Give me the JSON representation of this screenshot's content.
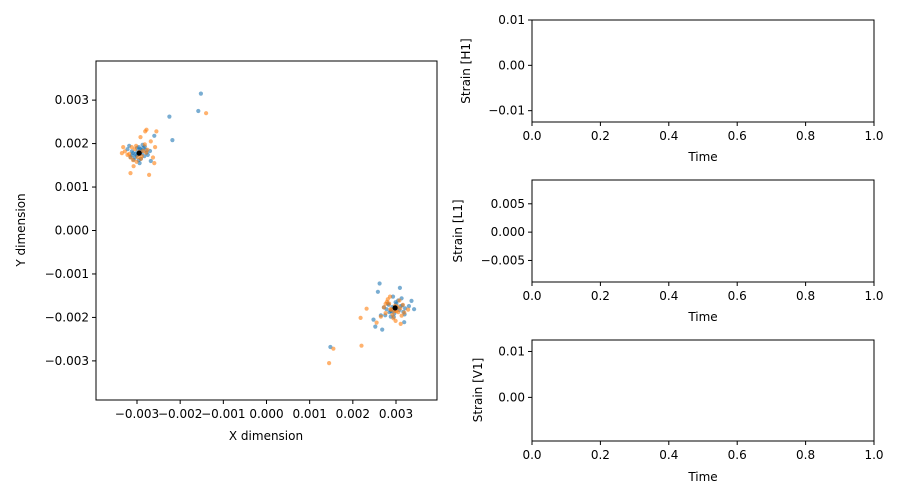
{
  "chart_data": [
    {
      "type": "scatter",
      "xlabel": "X dimension",
      "ylabel": "Y dimension",
      "xlim": [
        -0.00395,
        0.00395
      ],
      "ylim": [
        -0.0039,
        0.0039
      ],
      "x_ticks": [
        -0.003,
        -0.002,
        -0.001,
        0.0,
        0.001,
        0.002,
        0.003
      ],
      "x_tick_labels": [
        "−0.003",
        "−0.002",
        "−0.001",
        "0.000",
        "0.001",
        "0.002",
        "0.003"
      ],
      "y_ticks": [
        -0.003,
        -0.002,
        -0.001,
        0.0,
        0.001,
        0.002,
        0.003
      ],
      "y_tick_labels": [
        "−0.003",
        "−0.002",
        "−0.001",
        "0.000",
        "0.001",
        "0.002",
        "0.003"
      ],
      "grid": false,
      "series": [
        {
          "color": "#1f77b4",
          "x": [
            -0.00312,
            -0.00298,
            -0.00285,
            -0.00305,
            -0.00292,
            -0.00278,
            -0.00318,
            -0.00301,
            -0.00288,
            -0.00296,
            -0.00309,
            -0.00282,
            -0.00275,
            -0.00293,
            -0.00315,
            -0.00299,
            -0.00287,
            -0.0027,
            -0.00304,
            -0.00291,
            -0.00322,
            -0.00283,
            -0.00296,
            -0.00308,
            -0.00279,
            -0.00289,
            -0.003,
            -0.00312,
            -0.00294,
            -0.0026,
            -0.00268,
            -0.00225,
            -0.00218,
            -0.00158,
            -0.00152,
            0.00302,
            0.00288,
            0.00315,
            0.00296,
            0.00281,
            0.00308,
            0.00292,
            0.00275,
            0.00321,
            0.00299,
            0.00285,
            0.00311,
            0.00295,
            0.00278,
            0.00305,
            0.0029,
            0.0032,
            0.00283,
            0.00298,
            0.00313,
            0.00272,
            0.00288,
            0.00301,
            0.00317,
            0.00293,
            0.0033,
            0.00336,
            0.00342,
            0.00262,
            0.00258,
            0.00248,
            0.00265,
            0.00268,
            0.00309,
            0.00319,
            0.00252,
            0.00148
          ],
          "y": [
            0.00182,
            0.00175,
            0.0019,
            0.00168,
            0.00186,
            0.00179,
            0.00195,
            0.00172,
            0.00184,
            0.00162,
            0.00178,
            0.00193,
            0.00174,
            0.00188,
            0.00169,
            0.00181,
            0.00197,
            0.00183,
            0.00176,
            0.00165,
            0.00187,
            0.00171,
            0.00192,
            0.00163,
            0.00185,
            0.00177,
            0.0019,
            0.00173,
            0.00155,
            0.00218,
            0.0016,
            0.00262,
            0.00208,
            0.00275,
            0.00315,
            -0.00178,
            -0.00185,
            -0.00172,
            -0.00191,
            -0.00168,
            -0.00183,
            -0.00176,
            -0.00195,
            -0.00179,
            -0.00165,
            -0.00188,
            -0.00174,
            -0.00199,
            -0.00181,
            -0.00161,
            -0.00186,
            -0.00193,
            -0.00171,
            -0.00182,
            -0.00156,
            -0.00177,
            -0.00198,
            -0.00169,
            -0.00187,
            -0.00152,
            -0.00174,
            -0.00162,
            -0.00181,
            -0.00122,
            -0.00141,
            -0.00205,
            -0.00195,
            -0.00228,
            -0.00132,
            -0.00211,
            -0.00221,
            -0.00268
          ]
        },
        {
          "color": "#ff7f0e",
          "x": [
            -0.00322,
            -0.00305,
            -0.00291,
            -0.00279,
            -0.00312,
            -0.00298,
            -0.00286,
            -0.00318,
            -0.00302,
            -0.00289,
            -0.00276,
            -0.00309,
            -0.00295,
            -0.00282,
            -0.00315,
            -0.00301,
            -0.00268,
            -0.00328,
            -0.00292,
            -0.00308,
            -0.00281,
            -0.00263,
            -0.00258,
            -0.00255,
            -0.0026,
            -0.00315,
            -0.00272,
            -0.00278,
            -0.00335,
            -0.00332,
            -0.0014,
            0.00289,
            0.00303,
            0.00276,
            0.00316,
            0.00296,
            0.00284,
            0.0031,
            0.00292,
            0.00279,
            0.00305,
            0.00298,
            0.00287,
            0.00313,
            0.00281,
            0.00301,
            0.00294,
            0.00272,
            0.00308,
            0.00319,
            0.00286,
            0.00299,
            0.00276,
            0.00311,
            0.00328,
            0.00265,
            0.00255,
            0.00232,
            0.00218,
            0.0022,
            0.00145,
            0.00155
          ],
          "y": [
            0.00174,
            0.00187,
            0.00165,
            0.00179,
            0.00192,
            0.00169,
            0.00183,
            0.00176,
            0.00195,
            0.00171,
            0.00186,
            0.00162,
            0.00181,
            0.00198,
            0.00168,
            0.00158,
            0.00205,
            0.00182,
            0.00215,
            0.00148,
            0.00228,
            0.00168,
            0.00192,
            0.00228,
            0.00155,
            0.00132,
            0.00128,
            0.00232,
            0.00178,
            0.00192,
            0.0027,
            -0.00182,
            -0.00175,
            -0.0019,
            -0.00171,
            -0.00186,
            -0.00168,
            -0.00179,
            -0.00194,
            -0.00164,
            -0.00188,
            -0.00173,
            -0.00181,
            -0.00196,
            -0.00158,
            -0.00185,
            -0.00202,
            -0.00177,
            -0.00161,
            -0.00189,
            -0.00152,
            -0.00208,
            -0.00169,
            -0.00215,
            -0.00182,
            -0.00198,
            -0.00212,
            -0.0018,
            -0.00201,
            -0.00265,
            -0.00305,
            -0.00272
          ]
        },
        {
          "color": "#000000",
          "x": [
            -0.00295,
            0.00298
          ],
          "y": [
            0.00178,
            -0.00178
          ]
        }
      ]
    },
    {
      "type": "line",
      "xlabel": "Time",
      "ylabel": "Strain [H1]",
      "xlim": [
        0.0,
        1.0
      ],
      "ylim": [
        -0.0125,
        0.01
      ],
      "x_ticks": [
        0.0,
        0.2,
        0.4,
        0.6,
        0.8,
        1.0
      ],
      "x_tick_labels": [
        "0.0",
        "0.2",
        "0.4",
        "0.6",
        "0.8",
        "1.0"
      ],
      "y_ticks": [
        -0.01,
        0.0,
        0.01
      ],
      "y_tick_labels": [
        "−0.01",
        "0.00",
        "0.01"
      ],
      "series": []
    },
    {
      "type": "line",
      "xlabel": "Time",
      "ylabel": "Strain [L1]",
      "xlim": [
        0.0,
        1.0
      ],
      "ylim": [
        -0.0088,
        0.0092
      ],
      "x_ticks": [
        0.0,
        0.2,
        0.4,
        0.6,
        0.8,
        1.0
      ],
      "x_tick_labels": [
        "0.0",
        "0.2",
        "0.4",
        "0.6",
        "0.8",
        "1.0"
      ],
      "y_ticks": [
        -0.005,
        0.0,
        0.005
      ],
      "y_tick_labels": [
        "−0.005",
        "0.000",
        "0.005"
      ],
      "series": []
    },
    {
      "type": "line",
      "xlabel": "Time",
      "ylabel": "Strain [V1]",
      "xlim": [
        0.0,
        1.0
      ],
      "ylim": [
        -0.0095,
        0.0125
      ],
      "x_ticks": [
        0.0,
        0.2,
        0.4,
        0.6,
        0.8,
        1.0
      ],
      "x_tick_labels": [
        "0.0",
        "0.2",
        "0.4",
        "0.6",
        "0.8",
        "1.0"
      ],
      "y_ticks": [
        0.0,
        0.01
      ],
      "y_tick_labels": [
        "0.00",
        "0.01"
      ],
      "series": []
    }
  ]
}
